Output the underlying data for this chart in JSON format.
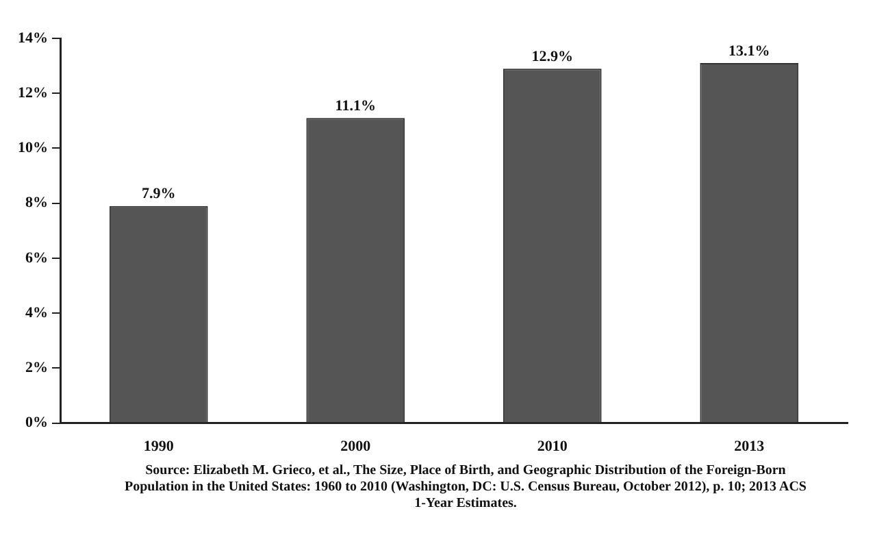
{
  "chart_data": {
    "type": "bar",
    "categories": [
      "1990",
      "2000",
      "2010",
      "2013"
    ],
    "values": [
      7.9,
      11.1,
      12.9,
      13.1
    ],
    "color": "#555555",
    "ylim": [
      0,
      14
    ],
    "yticks": [
      {
        "value": 0,
        "label": "0%"
      },
      {
        "value": 2,
        "label": "2%"
      },
      {
        "value": 4,
        "label": "4%"
      },
      {
        "value": 6,
        "label": "6%"
      },
      {
        "value": 8,
        "label": "8%"
      },
      {
        "value": 10,
        "label": "10%"
      },
      {
        "value": 12,
        "label": "12%"
      },
      {
        "value": 14,
        "label": "14%"
      }
    ],
    "value_labels": [
      "7.9%",
      "11.1%",
      "12.9%",
      "13.1%"
    ],
    "grid": false,
    "legend": false,
    "annotations": [
      "Source: Elizabeth M. Grieco, et al., The Size, Place of Birth, and Geographic Distribution of the Foreign-Born Population in the United States: 1960 to 2010 (Washington, DC: U.S. Census Bureau, October 2012), p. 10; 2013 ACS 1-Year Estimates."
    ]
  }
}
